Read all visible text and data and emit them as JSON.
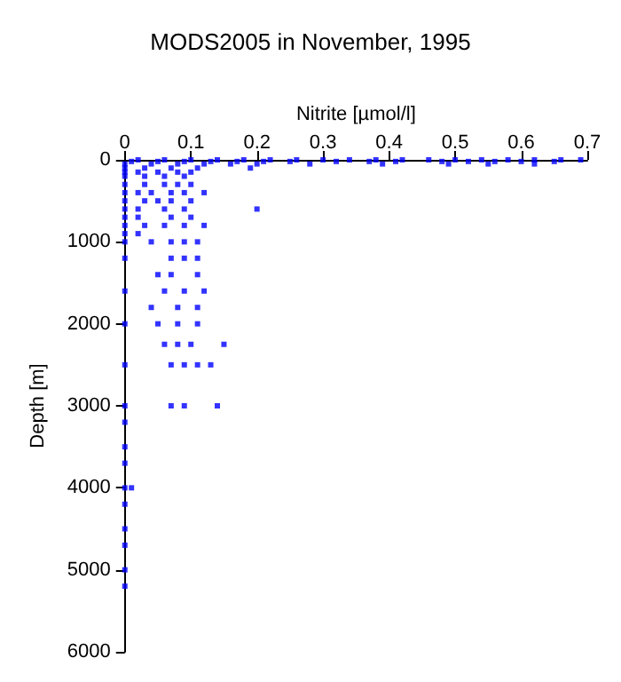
{
  "chart_data": {
    "type": "scatter",
    "title": "MODS2005 in November, 1995",
    "xlabel": "Nitrite [µmol/l]",
    "ylabel": "Depth [m]",
    "x": [
      0.02,
      0.06,
      0.1,
      0.14,
      0.18,
      0.22,
      0.26,
      0.3,
      0.34,
      0.38,
      0.42,
      0.46,
      0.5,
      0.54,
      0.58,
      0.62,
      0.66,
      0.69,
      0.01,
      0.05,
      0.09,
      0.13,
      0.17,
      0.21,
      0.25,
      0.32,
      0.37,
      0.41,
      0.48,
      0.52,
      0.56,
      0.6,
      0.65,
      0,
      0.04,
      0.08,
      0.12,
      0.16,
      0.2,
      0.28,
      0.39,
      0.49,
      0.55,
      0.62,
      0,
      0.03,
      0.07,
      0.11,
      0.19,
      0,
      0.02,
      0.05,
      0.08,
      0.1,
      0,
      0.03,
      0.06,
      0.09,
      0,
      0.03,
      0.06,
      0.08,
      0.1,
      0,
      0.02,
      0.04,
      0.07,
      0.09,
      0.12,
      0,
      0.03,
      0.05,
      0.07,
      0.1,
      0,
      0.02,
      0.06,
      0.09,
      0.2,
      0,
      0.02,
      0.07,
      0.1,
      0,
      0.03,
      0.06,
      0.09,
      0.12,
      0,
      0.02,
      0,
      0.04,
      0.07,
      0.09,
      0.11,
      0,
      0.07,
      0.09,
      0.11,
      0.05,
      0.07,
      0.11,
      0,
      0.06,
      0.09,
      0.12,
      0.04,
      0.08,
      0.11,
      0,
      0.05,
      0.08,
      0.11,
      0.06,
      0.08,
      0.1,
      0.15,
      0,
      0.07,
      0.09,
      0.11,
      0.13,
      0,
      0.07,
      0.09,
      0.14,
      0,
      0,
      0,
      0,
      0.01,
      0,
      0,
      0,
      0,
      0
    ],
    "values": [
      0,
      0,
      0,
      0,
      0,
      0,
      0,
      0,
      0,
      0,
      0,
      0,
      0,
      0,
      0,
      0,
      0,
      0,
      20,
      20,
      20,
      20,
      20,
      20,
      20,
      20,
      20,
      20,
      20,
      20,
      20,
      20,
      20,
      50,
      50,
      50,
      50,
      50,
      50,
      50,
      50,
      50,
      50,
      50,
      100,
      100,
      100,
      100,
      100,
      150,
      150,
      150,
      150,
      150,
      200,
      200,
      200,
      200,
      300,
      300,
      300,
      300,
      300,
      400,
      400,
      400,
      400,
      400,
      400,
      500,
      500,
      500,
      500,
      500,
      600,
      600,
      600,
      600,
      600,
      700,
      700,
      700,
      700,
      800,
      800,
      800,
      800,
      800,
      900,
      900,
      1000,
      1000,
      1000,
      1000,
      1000,
      1200,
      1200,
      1200,
      1200,
      1400,
      1400,
      1400,
      1600,
      1600,
      1600,
      1600,
      1800,
      1800,
      1800,
      2000,
      2000,
      2000,
      2000,
      2250,
      2250,
      2250,
      2250,
      2500,
      2500,
      2500,
      2500,
      2500,
      3000,
      3000,
      3000,
      3000,
      3200,
      3500,
      3700,
      4000,
      4000,
      4200,
      4500,
      4700,
      5000,
      5200
    ],
    "color": "#0000ff",
    "marker": "square",
    "grid": false,
    "xlim": [
      0,
      0.7
    ],
    "xticks": [
      0,
      0.1,
      0.2,
      0.3,
      0.4,
      0.5,
      0.6,
      0.7
    ],
    "ylim": [
      6000,
      0
    ],
    "yticks": [
      0,
      1000,
      2000,
      3000,
      4000,
      5000,
      6000
    ]
  }
}
